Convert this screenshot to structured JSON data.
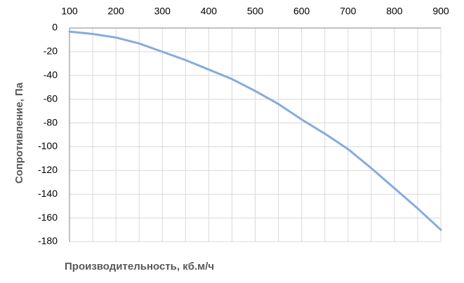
{
  "chart_data": {
    "type": "line",
    "x_label": "Производительность, кб.м/ч",
    "y_label": "Сопротивление, Па",
    "x": [
      100,
      150,
      200,
      250,
      300,
      350,
      400,
      450,
      500,
      550,
      600,
      650,
      700,
      750,
      800,
      850,
      900
    ],
    "series": [
      {
        "name": "Сопротивление",
        "color": "#86abdf",
        "values": [
          -3,
          -5,
          -8,
          -13,
          -20,
          -27,
          -35,
          -43,
          -53,
          -64,
          -77,
          -89,
          -102,
          -118,
          -135,
          -152,
          -170
        ]
      }
    ],
    "xlim": [
      100,
      900
    ],
    "xticks": [
      100,
      200,
      300,
      400,
      500,
      600,
      700,
      800,
      900
    ],
    "ylim": [
      -180,
      0
    ],
    "yticks": [
      0,
      -20,
      -40,
      -60,
      -80,
      -100,
      -120,
      -140,
      -160,
      -180
    ],
    "grid": true
  }
}
